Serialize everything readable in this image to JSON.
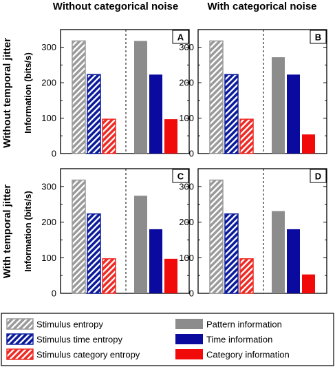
{
  "column_titles": [
    "Without categorical noise",
    "With categorical noise"
  ],
  "row_titles": [
    "Without temporal jitter",
    "With temporal jitter"
  ],
  "ylabel": "Information (bits/s)",
  "colors": {
    "entropy_gray": "#9a9a9a",
    "entropy_blue": "#0a1a9c",
    "entropy_red": "#ee2a24",
    "info_gray": "#8c8c8c",
    "info_blue": "#0a0a9e",
    "info_red": "#f00a0a"
  },
  "legend": [
    {
      "label": "Stimulus entropy",
      "style": "hatched",
      "color": "#9a9a9a"
    },
    {
      "label": "Pattern information",
      "style": "solid",
      "color": "#8c8c8c"
    },
    {
      "label": "Stimulus time entropy",
      "style": "hatched",
      "color": "#0a1a9c"
    },
    {
      "label": "Time information",
      "style": "solid",
      "color": "#0a0a9e"
    },
    {
      "label": "Stimulus category entropy",
      "style": "hatched",
      "color": "#ee2a24"
    },
    {
      "label": "Category information",
      "style": "solid",
      "color": "#f00a0a"
    }
  ],
  "chart_data": [
    {
      "type": "bar",
      "panel": "A",
      "ylim": [
        0,
        350
      ],
      "yticks": [
        0,
        100,
        200,
        300
      ],
      "categories": [
        "Stimulus entropy",
        "Stimulus time entropy",
        "Stimulus category entropy",
        "Pattern information",
        "Time information",
        "Category information"
      ],
      "values": [
        318,
        223,
        97,
        318,
        223,
        97
      ]
    },
    {
      "type": "bar",
      "panel": "B",
      "ylim": [
        0,
        350
      ],
      "yticks": [
        0,
        100,
        200,
        300
      ],
      "categories": [
        "Stimulus entropy",
        "Stimulus time entropy",
        "Stimulus category entropy",
        "Pattern information",
        "Time information",
        "Category information"
      ],
      "values": [
        318,
        223,
        97,
        272,
        223,
        54
      ]
    },
    {
      "type": "bar",
      "panel": "C",
      "ylim": [
        0,
        350
      ],
      "yticks": [
        0,
        100,
        200,
        300
      ],
      "categories": [
        "Stimulus entropy",
        "Stimulus time entropy",
        "Stimulus category entropy",
        "Pattern information",
        "Time information",
        "Category information"
      ],
      "values": [
        318,
        223,
        97,
        274,
        180,
        97
      ]
    },
    {
      "type": "bar",
      "panel": "D",
      "ylim": [
        0,
        350
      ],
      "yticks": [
        0,
        100,
        200,
        300
      ],
      "categories": [
        "Stimulus entropy",
        "Stimulus time entropy",
        "Stimulus category entropy",
        "Pattern information",
        "Time information",
        "Category information"
      ],
      "values": [
        318,
        223,
        97,
        231,
        180,
        53
      ]
    }
  ]
}
